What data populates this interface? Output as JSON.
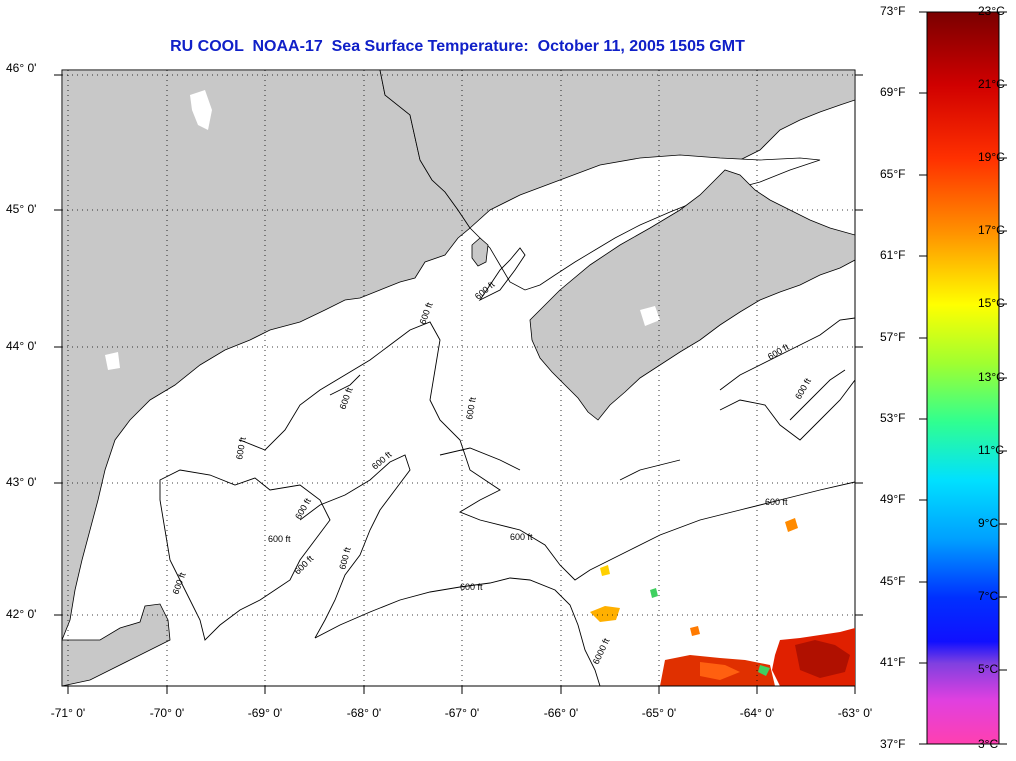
{
  "title": "RU COOL  NOAA-17  Sea Surface Temperature:  October 11, 2005 1505 GMT",
  "lat_labels": [
    "46° 0'",
    "45° 0'",
    "44° 0'",
    "43° 0'",
    "42° 0'"
  ],
  "lon_labels": [
    "-71° 0'",
    "-70° 0'",
    "-69° 0'",
    "-68° 0'",
    "-67° 0'",
    "-66° 0'",
    "-65° 0'",
    "-64° 0'",
    "-63° 0'"
  ],
  "contour_labels": [
    "600 ft",
    "600 ft",
    "600 ft",
    "600 ft",
    "600 ft",
    "600 ft",
    "600 ft",
    "600 ft",
    "600 ft",
    "600 ft",
    "600 ft",
    "600 ft",
    "600 ft",
    "600 ft",
    "600 ft",
    "600 ft",
    "6000 ft"
  ],
  "colorbar": {
    "fahrenheit": [
      "73°F",
      "69°F",
      "65°F",
      "61°F",
      "57°F",
      "53°F",
      "49°F",
      "45°F",
      "41°F",
      "37°F"
    ],
    "celsius": [
      "23°C",
      "21°C",
      "19°C",
      "17°C",
      "15°C",
      "13°C",
      "11°C",
      "9°C",
      "7°C",
      "5°C",
      "3°C"
    ]
  },
  "colors": {
    "land": "#c8c8c8",
    "water": "#ffffff",
    "title": "#1020c8"
  }
}
